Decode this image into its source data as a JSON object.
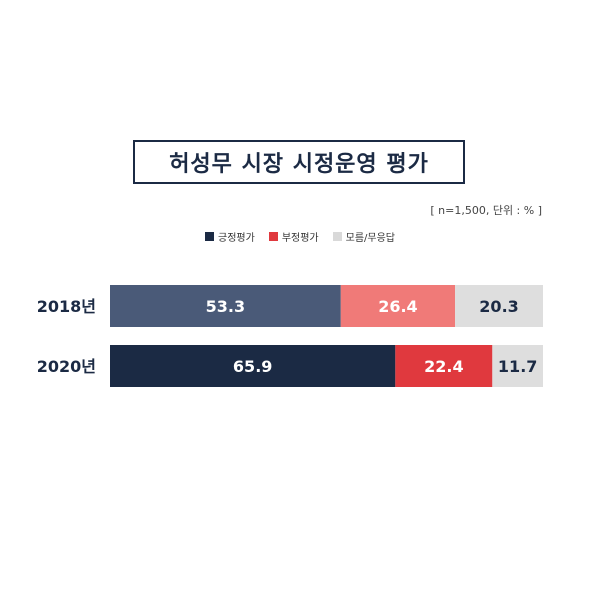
{
  "title": "허성무 시장 시정운영 평가",
  "note": "[ n=1,500, 단위 : % ]",
  "legend": [
    {
      "label": "긍정평가",
      "color": "#1b2a44"
    },
    {
      "label": "부정평가",
      "color": "#e0393e"
    },
    {
      "label": "모름/무응답",
      "color": "#d9d9d9"
    }
  ],
  "chart_data": {
    "type": "bar",
    "orientation": "horizontal",
    "stacked": true,
    "categories": [
      "2018년",
      "2020년"
    ],
    "series": [
      {
        "name": "긍정평가",
        "values": [
          53.3,
          65.9
        ],
        "colors": [
          "#4a5a78",
          "#1b2a44"
        ],
        "label_colors": [
          "#ffffff",
          "#ffffff"
        ]
      },
      {
        "name": "부정평가",
        "values": [
          26.4,
          22.4
        ],
        "colors": [
          "#f07a78",
          "#e0393e"
        ],
        "label_colors": [
          "#ffffff",
          "#ffffff"
        ]
      },
      {
        "name": "모름/무응답",
        "values": [
          20.3,
          11.7
        ],
        "colors": [
          "#dedede",
          "#dedede"
        ],
        "label_colors": [
          "#1b2a44",
          "#1b2a44"
        ]
      }
    ],
    "xlim": [
      0,
      100
    ],
    "title": "허성무 시장 시정운영 평가",
    "grid": false,
    "legend_position": "top-center"
  }
}
